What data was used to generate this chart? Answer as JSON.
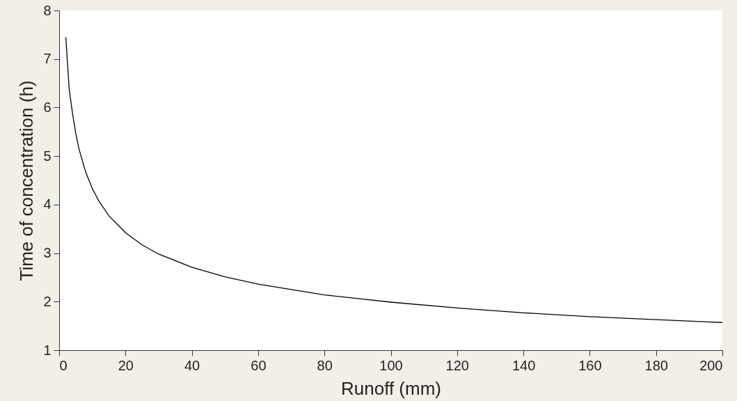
{
  "chart_data": {
    "type": "line",
    "xlabel": "Runoff (mm)",
    "ylabel": "Time of concentration (h)",
    "x": [
      2,
      3,
      4,
      5,
      6,
      8,
      10,
      12,
      15,
      20,
      25,
      30,
      40,
      50,
      60,
      80,
      100,
      120,
      140,
      160,
      180,
      200
    ],
    "series": [
      {
        "color": "#000000",
        "values": [
          7.45,
          6.4,
          5.89,
          5.47,
          5.14,
          4.67,
          4.33,
          4.07,
          3.77,
          3.42,
          3.17,
          2.98,
          2.71,
          2.51,
          2.36,
          2.14,
          1.99,
          1.87,
          1.77,
          1.69,
          1.63,
          1.57
        ]
      }
    ],
    "xlim": [
      0,
      200
    ],
    "xticks": [
      0,
      20,
      40,
      60,
      80,
      100,
      120,
      140,
      160,
      180,
      200
    ],
    "ylim": [
      1,
      8
    ],
    "yticks": [
      1,
      2,
      3,
      4,
      5,
      6,
      7,
      8
    ],
    "grid": false,
    "marker": "none",
    "line_style": "solid"
  }
}
